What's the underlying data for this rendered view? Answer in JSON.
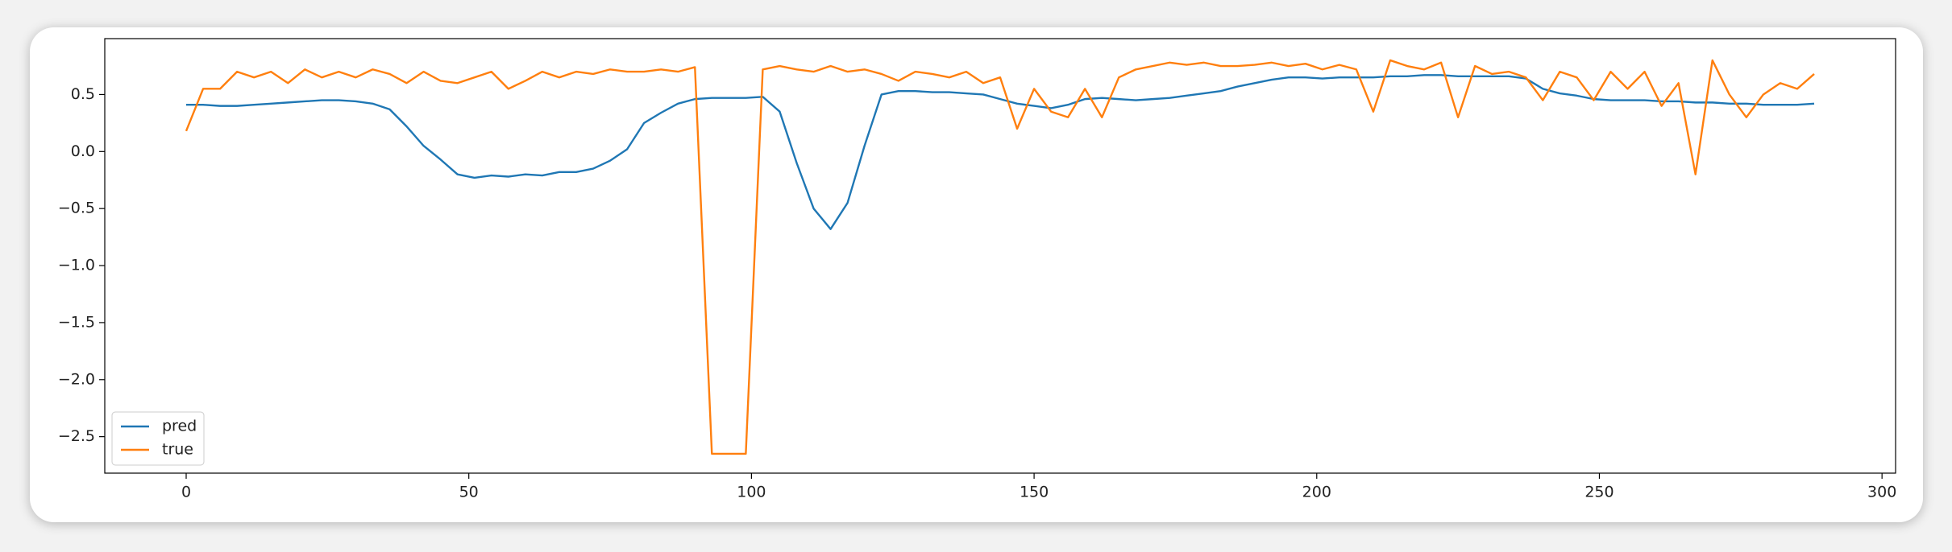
{
  "chart_data": {
    "type": "line",
    "x": [
      0,
      3,
      6,
      9,
      12,
      15,
      18,
      21,
      24,
      27,
      30,
      33,
      36,
      39,
      42,
      45,
      48,
      51,
      54,
      57,
      60,
      63,
      66,
      69,
      72,
      75,
      78,
      81,
      84,
      87,
      90,
      93,
      96,
      99,
      102,
      105,
      108,
      111,
      114,
      117,
      120,
      123,
      126,
      129,
      132,
      135,
      138,
      141,
      144,
      147,
      150,
      153,
      156,
      159,
      162,
      165,
      168,
      171,
      174,
      177,
      180,
      183,
      186,
      189,
      192,
      195,
      198,
      201,
      204,
      207,
      210,
      213,
      216,
      219,
      222,
      225,
      228,
      231,
      234,
      237,
      240,
      243,
      246,
      249,
      252,
      255,
      258,
      261,
      264,
      267,
      270,
      273,
      276,
      279,
      282,
      285,
      288
    ],
    "series": [
      {
        "name": "pred",
        "color": "#1f77b4",
        "values": [
          0.41,
          0.41,
          0.4,
          0.4,
          0.41,
          0.42,
          0.43,
          0.44,
          0.45,
          0.45,
          0.44,
          0.42,
          0.37,
          0.22,
          0.05,
          -0.07,
          -0.2,
          -0.23,
          -0.21,
          -0.22,
          -0.2,
          -0.21,
          -0.18,
          -0.18,
          -0.15,
          -0.08,
          0.02,
          0.25,
          0.34,
          0.42,
          0.46,
          0.47,
          0.47,
          0.47,
          0.48,
          0.35,
          -0.1,
          -0.5,
          -0.68,
          -0.45,
          0.05,
          0.5,
          0.53,
          0.53,
          0.52,
          0.52,
          0.51,
          0.5,
          0.46,
          0.42,
          0.4,
          0.38,
          0.41,
          0.46,
          0.47,
          0.46,
          0.45,
          0.46,
          0.47,
          0.49,
          0.51,
          0.53,
          0.57,
          0.6,
          0.63,
          0.65,
          0.65,
          0.64,
          0.65,
          0.65,
          0.65,
          0.66,
          0.66,
          0.67,
          0.67,
          0.66,
          0.66,
          0.66,
          0.66,
          0.64,
          0.55,
          0.51,
          0.49,
          0.46,
          0.45,
          0.45,
          0.45,
          0.44,
          0.44,
          0.43,
          0.43,
          0.42,
          0.42,
          0.41,
          0.41,
          0.41,
          0.42
        ]
      },
      {
        "name": "true",
        "color": "#ff7f0e",
        "values": [
          0.18,
          0.55,
          0.55,
          0.7,
          0.65,
          0.7,
          0.6,
          0.72,
          0.65,
          0.7,
          0.65,
          0.72,
          0.68,
          0.6,
          0.7,
          0.62,
          0.6,
          0.65,
          0.7,
          0.55,
          0.62,
          0.7,
          0.65,
          0.7,
          0.68,
          0.72,
          0.7,
          0.7,
          0.72,
          0.7,
          0.74,
          -2.65,
          -2.65,
          -2.65,
          0.72,
          0.75,
          0.72,
          0.7,
          0.75,
          0.7,
          0.72,
          0.68,
          0.62,
          0.7,
          0.68,
          0.65,
          0.7,
          0.6,
          0.65,
          0.2,
          0.55,
          0.35,
          0.3,
          0.55,
          0.3,
          0.65,
          0.72,
          0.75,
          0.78,
          0.76,
          0.78,
          0.75,
          0.75,
          0.76,
          0.78,
          0.75,
          0.77,
          0.72,
          0.76,
          0.72,
          0.35,
          0.8,
          0.75,
          0.72,
          0.78,
          0.3,
          0.75,
          0.68,
          0.7,
          0.65,
          0.45,
          0.7,
          0.65,
          0.45,
          0.7,
          0.55,
          0.7,
          0.4,
          0.6,
          -0.2,
          0.8,
          0.5,
          0.3,
          0.5,
          0.6,
          0.55,
          0.68
        ]
      }
    ],
    "xlim": [
      -14.4,
      302.4
    ],
    "ylim": [
      -2.82,
      0.99
    ],
    "xticks": [
      0,
      50,
      100,
      150,
      200,
      250,
      300
    ],
    "yticks": [
      {
        "value": -2.5,
        "label": "−2.5"
      },
      {
        "value": -2.0,
        "label": "−2.0"
      },
      {
        "value": -1.5,
        "label": "−1.5"
      },
      {
        "value": -1.0,
        "label": "−1.0"
      },
      {
        "value": -0.5,
        "label": "−0.5"
      },
      {
        "value": 0,
        "label": "0.0"
      },
      0.5
    ],
    "legend": "lower left"
  }
}
